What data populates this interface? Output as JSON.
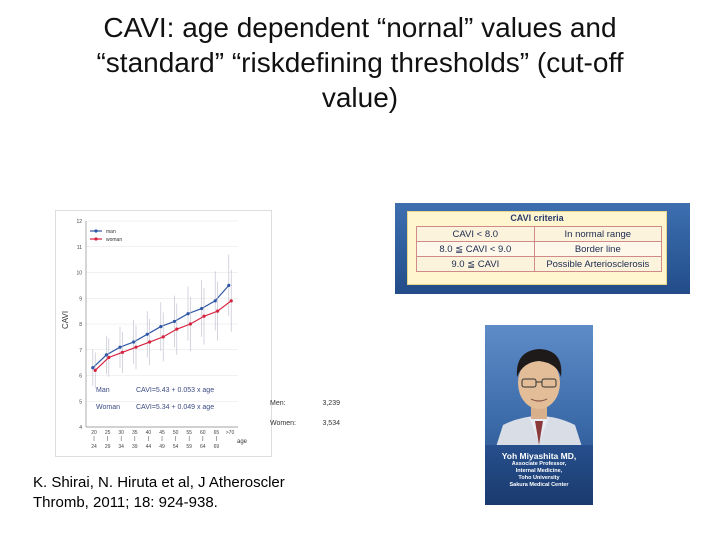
{
  "slide": {
    "title_line1": "CAVI: age dependent “nornal” values and",
    "title_line2": "“standard” “riskdefining thresholds” (cut-off",
    "title_line3": "value)"
  },
  "chart_data": {
    "type": "line",
    "ylabel": "CAVI",
    "xlabel": "age",
    "ylim": [
      4,
      12
    ],
    "yticks": [
      "4",
      "5",
      "6",
      "7",
      "8",
      "9",
      "10",
      "11",
      "12"
    ],
    "x_ticks_top": [
      "20",
      "25",
      "30",
      "35",
      "40",
      "45",
      "50",
      "55",
      "60",
      "65",
      ">70"
    ],
    "x_ticks_bottom": [
      "24",
      "29",
      "34",
      "39",
      "44",
      "49",
      "54",
      "59",
      "64",
      "69"
    ],
    "grid": true,
    "legend": "top-left",
    "series": [
      {
        "name": "man",
        "color": "#2f57a6",
        "values": [
          6.3,
          6.8,
          7.1,
          7.3,
          7.6,
          7.9,
          8.1,
          8.4,
          8.6,
          8.9,
          9.5
        ]
      },
      {
        "name": "woman",
        "color": "#d6223f",
        "values": [
          6.2,
          6.7,
          6.9,
          7.1,
          7.3,
          7.5,
          7.8,
          8.0,
          8.3,
          8.5,
          8.9
        ]
      }
    ],
    "formula_man_label": "Man",
    "formula_man": "CAVI=5.43 + 0.053 x age",
    "formula_woman_label": "Woman",
    "formula_woman": "CAVI=5.34 + 0.049 x age",
    "men_label": "Men:",
    "men_n": "3,239",
    "women_label": "Women:",
    "women_n": "3,534"
  },
  "criteria": {
    "title": "CAVI criteria",
    "rows": [
      {
        "range": "CAVI < 8.0",
        "meaning": "In normal range"
      },
      {
        "range": "8.0 ≦ CAVI < 9.0",
        "meaning": "Border line"
      },
      {
        "range": "9.0 ≦ CAVI",
        "meaning": "Possible Arteriosclerosis"
      }
    ]
  },
  "portrait": {
    "name": "Yoh Miyashita MD,",
    "line1": "Associate Professor,",
    "line2": "Internal Medicine,",
    "line3": "Toho University",
    "line4": "Sakura Medical Center"
  },
  "citation": {
    "line1": "K. Shirai,  N. Hiruta et al, J Atheroscler",
    "line2": "Thromb, 2011; 18: 924-938."
  },
  "colors": {
    "man": "#2f57a6",
    "woman": "#d6223f",
    "panel_blue": "#2a5796"
  }
}
